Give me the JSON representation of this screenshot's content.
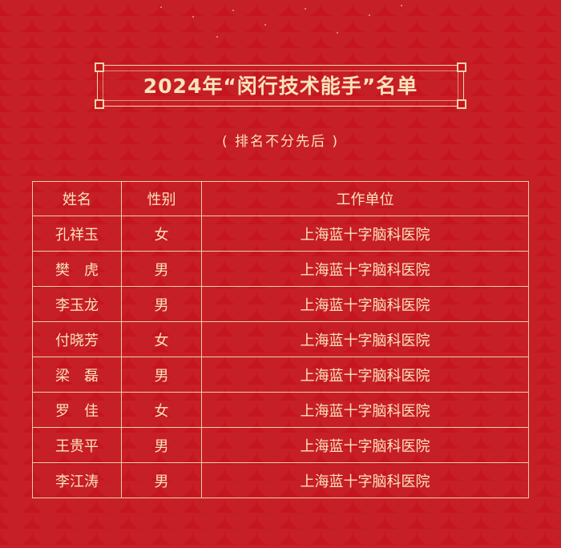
{
  "title": "2024年“闵行技术能手”名单",
  "subtitle": "( 排名不分先后 )",
  "colors": {
    "background": "#c5161e",
    "text": "#f8e3bd",
    "border": "#eecfa3"
  },
  "table": {
    "headers": [
      "姓名",
      "性别",
      "工作单位"
    ],
    "rows": [
      [
        "孔祥玉",
        "女",
        "上海蓝十字脑科医院"
      ],
      [
        "樊　虎",
        "男",
        "上海蓝十字脑科医院"
      ],
      [
        "李玉龙",
        "男",
        "上海蓝十字脑科医院"
      ],
      [
        "付晓芳",
        "女",
        "上海蓝十字脑科医院"
      ],
      [
        "梁　磊",
        "男",
        "上海蓝十字脑科医院"
      ],
      [
        "罗　佳",
        "女",
        "上海蓝十字脑科医院"
      ],
      [
        "王贵平",
        "男",
        "上海蓝十字脑科医院"
      ],
      [
        "李江涛",
        "男",
        "上海蓝十字脑科医院"
      ]
    ]
  }
}
